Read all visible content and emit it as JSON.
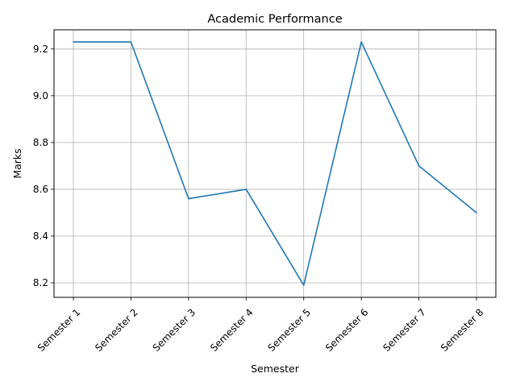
{
  "chart_data": {
    "type": "line",
    "title": "Academic Performance",
    "xlabel": "Semester",
    "ylabel": "Marks",
    "categories": [
      "Semester 1",
      "Semester 2",
      "Semester 3",
      "Semester 4",
      "Semester 5",
      "Semester 6",
      "Semester 7",
      "Semester 8"
    ],
    "series": [
      {
        "values": [
          9.23,
          9.23,
          8.56,
          8.6,
          8.19,
          9.23,
          8.7,
          8.5
        ]
      }
    ],
    "yticks": [
      "8.2",
      "8.4",
      "8.6",
      "8.8",
      "9.0",
      "9.2"
    ],
    "ylim": [
      8.138,
      9.282
    ],
    "grid": true,
    "legend": "none",
    "line_color": "#1f77b4",
    "grid_color": "#b0b0b0"
  }
}
